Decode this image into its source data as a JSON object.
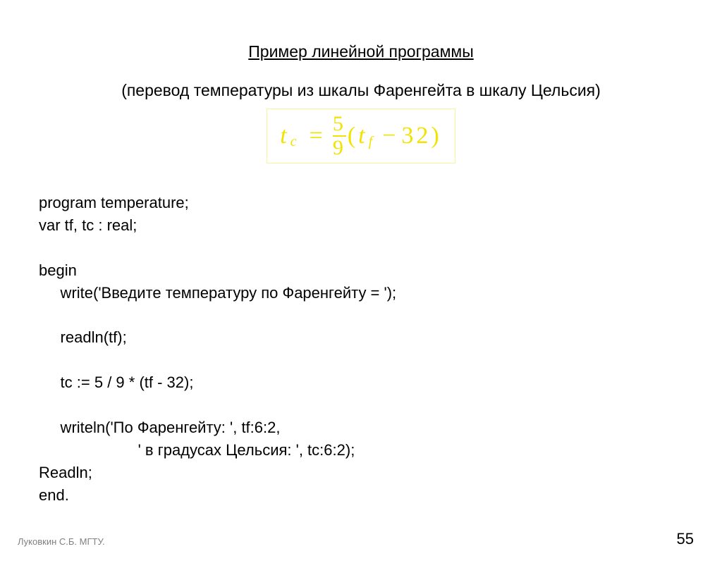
{
  "title": "Пример линейной программы",
  "subtitle": "(перевод температуры из шкалы Фаренгейта в шкалу Цельсия)",
  "formula": {
    "lhs_var": "t",
    "lhs_sub": "c",
    "numerator": "5",
    "denominator": "9",
    "rhs_var": "t",
    "rhs_sub": "f",
    "constant": "32",
    "color": "#f2e200",
    "border_color": "#f5f5a0",
    "fontsize": 34
  },
  "code": {
    "line1": "program temperature;",
    "line2": "var tf, tc : real;",
    "line3": "",
    "line4": "begin",
    "line5": "     write('Введите температуру по Фаренгейту = ');",
    "line6": "",
    "line7": "     readln(tf);",
    "line8": "",
    "line9": "     tc := 5 / 9 * (tf - 32);",
    "line10": "",
    "line11": "     writeln('По Фаренгейту: ', tf:6:2,",
    "line12": "                       ' в градусах Цельсия: ', tc:6:2);",
    "line13": "Readln;",
    "line14": "end."
  },
  "footer": {
    "author": "Луковкин С.Б. МГТУ.",
    "page": "55"
  },
  "colors": {
    "background": "#ffffff",
    "text": "#000000",
    "footer_author": "#808080"
  }
}
